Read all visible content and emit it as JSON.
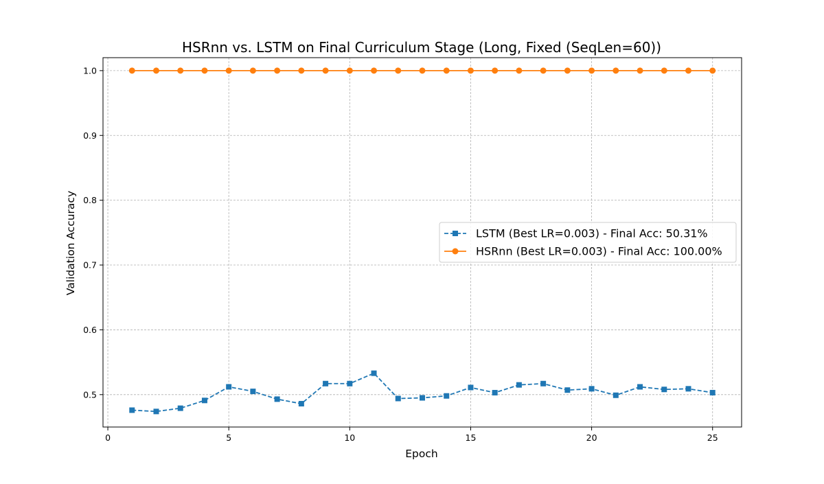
{
  "chart_data": {
    "type": "line",
    "title": "HSRnn vs. LSTM on Final Curriculum Stage (Long, Fixed (SeqLen=60))",
    "xlabel": "Epoch",
    "ylabel": "Validation Accuracy",
    "xlim": [
      -0.2,
      26.2
    ],
    "ylim": [
      0.45,
      1.02
    ],
    "xticks": [
      0,
      5,
      10,
      15,
      20,
      25
    ],
    "xtick_labels": [
      "0",
      "5",
      "10",
      "15",
      "20",
      "25"
    ],
    "yticks": [
      0.5,
      0.6,
      0.7,
      0.8,
      0.9,
      1.0
    ],
    "ytick_labels": [
      "0.5",
      "0.6",
      "0.7",
      "0.8",
      "0.9",
      "1.0"
    ],
    "grid": true,
    "legend_position": "center-right",
    "x": [
      1,
      2,
      3,
      4,
      5,
      6,
      7,
      8,
      9,
      10,
      11,
      12,
      13,
      14,
      15,
      16,
      17,
      18,
      19,
      20,
      21,
      22,
      23,
      24,
      25
    ],
    "series": [
      {
        "name": "LSTM (Best LR=0.003) - Final Acc: 50.31%",
        "color": "#1f77b4",
        "linestyle": "dashed",
        "marker": "square",
        "values": [
          0.476,
          0.474,
          0.479,
          0.491,
          0.512,
          0.505,
          0.493,
          0.486,
          0.517,
          0.517,
          0.533,
          0.494,
          0.495,
          0.498,
          0.511,
          0.503,
          0.515,
          0.517,
          0.507,
          0.509,
          0.499,
          0.512,
          0.508,
          0.509,
          0.503
        ]
      },
      {
        "name": "HSRnn (Best LR=0.003) - Final Acc: 100.00%",
        "color": "#ff7f0e",
        "linestyle": "solid",
        "marker": "circle",
        "values": [
          1.0,
          1.0,
          1.0,
          1.0,
          1.0,
          1.0,
          1.0,
          1.0,
          1.0,
          1.0,
          1.0,
          1.0,
          1.0,
          1.0,
          1.0,
          1.0,
          1.0,
          1.0,
          1.0,
          1.0,
          1.0,
          1.0,
          1.0,
          1.0,
          1.0
        ]
      }
    ]
  }
}
